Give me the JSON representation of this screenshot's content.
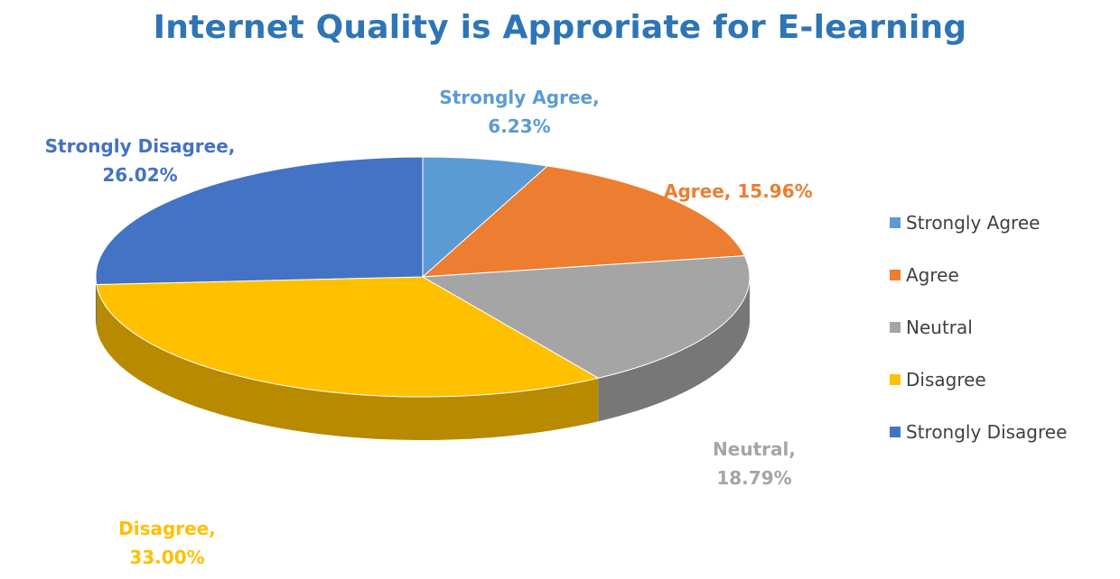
{
  "chart_data": {
    "type": "pie",
    "title": "Internet Quality is Approriate for E-learning",
    "slices": [
      {
        "name": "Strongly Agree",
        "value": 6.23,
        "label_name": "Strongly Agree,",
        "label_value": "6.23%",
        "color": "#5b9bd5"
      },
      {
        "name": "Agree",
        "value": 15.96,
        "label_name": "Agree,",
        "label_value": "15.96%",
        "color": "#ed7d31"
      },
      {
        "name": "Neutral",
        "value": 18.79,
        "label_name": "Neutral,",
        "label_value": "18.79%",
        "color": "#a5a5a5"
      },
      {
        "name": "Disagree",
        "value": 33.0,
        "label_name": "Disagree,",
        "label_value": "33.00%",
        "color": "#ffc000"
      },
      {
        "name": "Strongly Disagree",
        "value": 26.02,
        "label_name": "Strongly Disagree,",
        "label_value": "26.02%",
        "color": "#4472c4"
      }
    ],
    "legend": {
      "position": "right",
      "entries": [
        "Strongly Agree",
        "Agree",
        "Neutral",
        "Disagree",
        "Strongly Disagree"
      ]
    },
    "style": "3d-pie"
  }
}
